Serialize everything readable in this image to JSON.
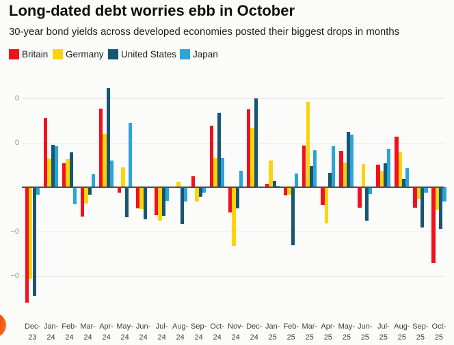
{
  "header": {
    "title": "Long-dated debt worries ebb in October",
    "subtitle": "30-year bond yields across developed economies posted their biggest drops in months"
  },
  "chart_data": {
    "type": "bar",
    "title": "Long-dated debt worries ebb in October",
    "subtitle": "30-year bond yields across developed economies posted their biggest drops in months",
    "unit": "percentage points (monthly change in 30-year bond yields)",
    "categories": [
      "Dec-23",
      "Jan-24",
      "Feb-24",
      "Mar-24",
      "Apr-24",
      "May-24",
      "Jun-24",
      "Jul-24",
      "Aug-24",
      "Sep-24",
      "Oct-24",
      "Nov-24",
      "Dec-24",
      "Jan-25",
      "Feb-25",
      "Mar-25",
      "Apr-25",
      "May-25",
      "Jun-25",
      "Jul-25",
      "Aug-25",
      "Sep-25",
      "Oct-25"
    ],
    "series": [
      {
        "name": "Britain",
        "color": "#f1111c",
        "values": [
          -0.65,
          0.39,
          0.135,
          -0.166,
          0.444,
          -0.03,
          -0.12,
          -0.156,
          0.0,
          0.06,
          0.345,
          -0.143,
          0.44,
          0.019,
          -0.048,
          0.236,
          -0.1,
          0.205,
          -0.117,
          0.128,
          0.283,
          -0.117,
          -0.426
        ]
      },
      {
        "name": "Germany",
        "color": "#fcd40b",
        "values": [
          -0.514,
          0.162,
          0.157,
          -0.093,
          0.3,
          0.112,
          -0.122,
          -0.19,
          0.03,
          -0.08,
          0.165,
          -0.332,
          0.333,
          0.151,
          -0.042,
          0.48,
          -0.205,
          0.14,
          0.129,
          0.091,
          0.198,
          -0.064,
          -0.126
        ]
      },
      {
        "name": "United States",
        "color": "#175672",
        "values": [
          -0.613,
          0.239,
          0.197,
          -0.042,
          0.556,
          -0.169,
          -0.182,
          -0.161,
          -0.208,
          -0.055,
          0.42,
          -0.118,
          0.5,
          0.033,
          -0.325,
          0.121,
          0.081,
          0.31,
          -0.188,
          0.135,
          0.048,
          -0.227,
          -0.233
        ]
      },
      {
        "name": "Japan",
        "color": "#2aa5d8",
        "values": [
          -0.041,
          0.229,
          -0.097,
          0.072,
          0.151,
          0.36,
          0.0,
          -0.078,
          -0.082,
          -0.03,
          0.165,
          0.092,
          0.0,
          0.009,
          0.078,
          0.208,
          0.23,
          0.295,
          -0.04,
          0.217,
          0.107,
          -0.031,
          -0.081
        ]
      }
    ],
    "yticks": [
      {
        "value": 0.5,
        "label": "0"
      },
      {
        "value": 0.25,
        "label": "0"
      },
      {
        "value": -0.25,
        "label": "−0"
      },
      {
        "value": -0.5,
        "label": "−0"
      }
    ],
    "ylim": [
      -0.75,
      0.65
    ],
    "grid": true,
    "legend_position": "top",
    "baseline_value": 0
  },
  "decoration": {
    "corner_circle_color_inner": "#de2f08",
    "corner_circle_color_outer": "#f96c17"
  }
}
